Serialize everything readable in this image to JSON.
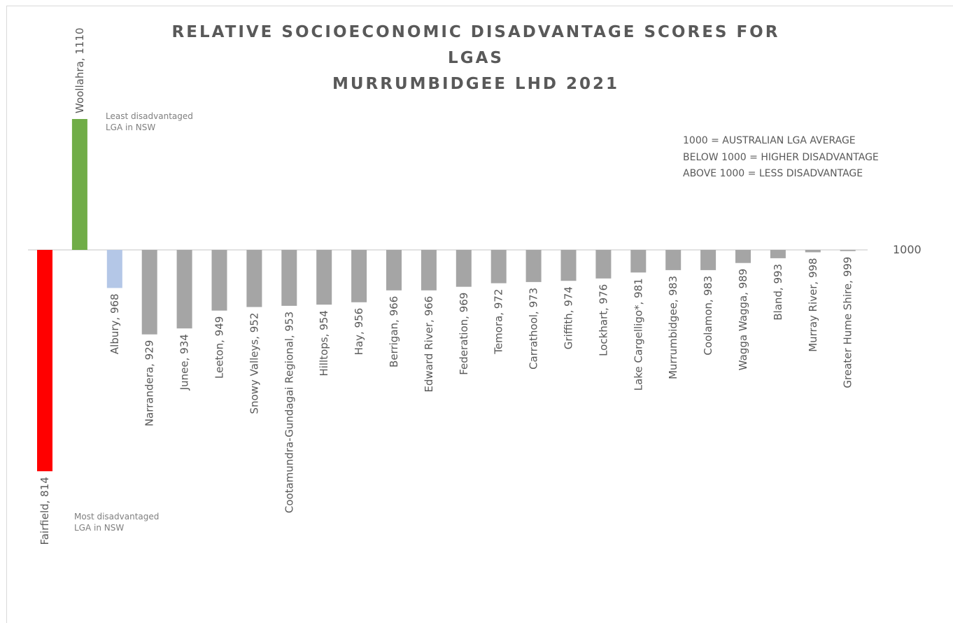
{
  "chart_data": {
    "type": "bar",
    "title_lines": [
      "RELATIVE SOCIOECONOMIC DISADVANTAGE SCORES FOR LGAS",
      "MURRUMBIDGEE LHD 2021"
    ],
    "baseline": 1000,
    "baseline_label": "1000",
    "categories": [
      "Fairfield",
      "Woollahra",
      "Albury",
      "Narrandera",
      "Junee",
      "Leeton",
      "Snowy Valleys",
      "Cootamundra-Gundagai Regional",
      "Hilltops",
      "Hay",
      "Berrigan",
      "Edward River",
      "Federation",
      "Temora",
      "Carrathool",
      "Griffith",
      "Lockhart",
      "Lake Cargelligo*",
      "Murrumbidgee",
      "Coolamon",
      "Wagga Wagga",
      "Bland",
      "Murray River",
      "Greater Hume Shire"
    ],
    "values": [
      814,
      1110,
      968,
      929,
      934,
      949,
      952,
      953,
      954,
      956,
      966,
      966,
      969,
      972,
      973,
      974,
      976,
      981,
      983,
      983,
      989,
      993,
      998,
      999
    ],
    "data_labels": [
      "Fairfield, 814",
      "Woollahra, 1110",
      "Albury, 968",
      "Narrandera, 929",
      "Junee, 934",
      "Leeton, 949",
      "Snowy Valleys, 952",
      "Cootamundra-Gundagai Regional, 953",
      "Hilltops, 954",
      "Hay, 956",
      "Berrigan, 966",
      "Edward River, 966",
      "Federation, 969",
      "Temora, 972",
      "Carrathool, 973",
      "Griffith, 974",
      "Lockhart, 976",
      "Lake Cargelligo*, 981",
      "Murrumbidgee, 983",
      "Coolamon, 983",
      "Wagga Wagga, 989",
      "Bland, 993",
      "Murray River, 998",
      "Greater Hume Shire, 999"
    ],
    "colors": [
      "#ff0000",
      "#70ad47",
      "#b4c7e7",
      "#a5a5a5",
      "#a5a5a5",
      "#a5a5a5",
      "#a5a5a5",
      "#a5a5a5",
      "#a5a5a5",
      "#a5a5a5",
      "#a5a5a5",
      "#a5a5a5",
      "#a5a5a5",
      "#a5a5a5",
      "#a5a5a5",
      "#a5a5a5",
      "#a5a5a5",
      "#a5a5a5",
      "#a5a5a5",
      "#a5a5a5",
      "#a5a5a5",
      "#a5a5a5",
      "#a5a5a5",
      "#a5a5a5"
    ],
    "grid": false,
    "legend": "none",
    "notes": [
      "1000 = AUSTRALIAN LGA AVERAGE",
      "BELOW 1000 = HIGHER DISADVANTAGE",
      "ABOVE 1000 = LESS DISADVANTAGE"
    ],
    "annotations": {
      "least": [
        "Least disadvantaged",
        "LGA in NSW"
      ],
      "most": [
        "Most disadvantaged",
        "LGA in NSW"
      ]
    }
  },
  "colors": {
    "text": "#595959",
    "annotation": "#7f7f7f",
    "axis": "#d9d9d9"
  }
}
